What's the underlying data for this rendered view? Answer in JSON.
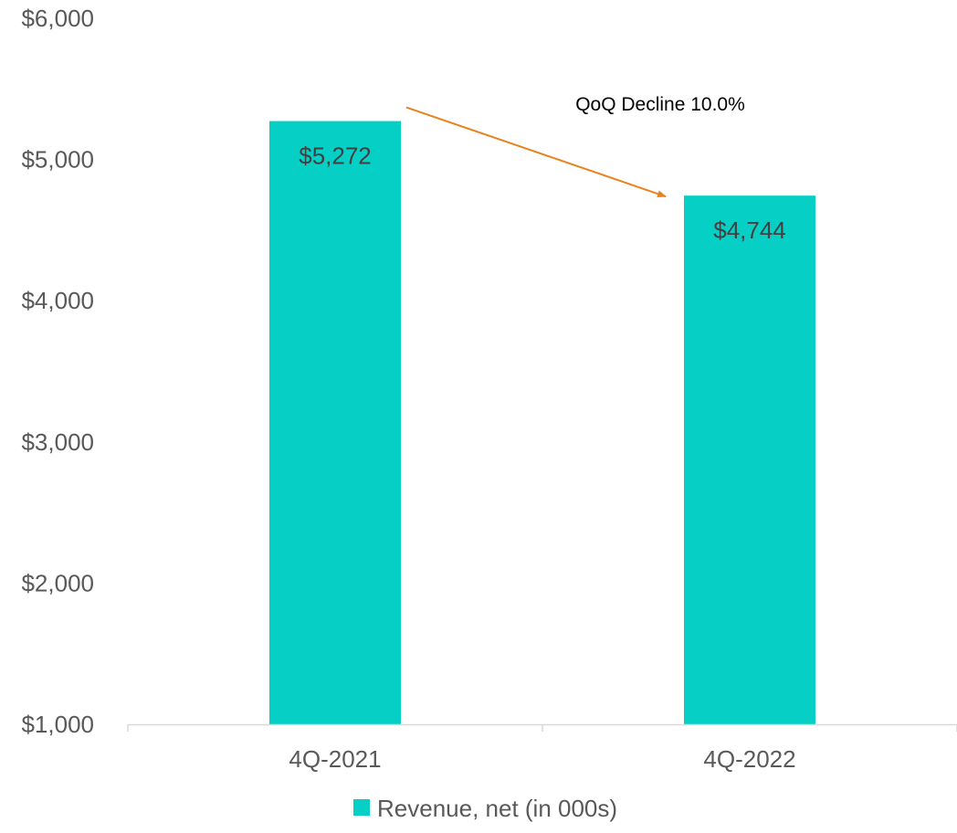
{
  "chart_data": {
    "type": "bar",
    "categories": [
      "4Q-2021",
      "4Q-2022"
    ],
    "series": [
      {
        "name": "Revenue, net (in 000s)",
        "values": [
          5272,
          4744
        ],
        "color": "#06d0c5",
        "data_labels": [
          "$5,272",
          "$4,744"
        ]
      }
    ],
    "ylim": [
      1000,
      6000
    ],
    "yticks": [
      1000,
      2000,
      3000,
      4000,
      5000,
      6000
    ],
    "ytick_labels": [
      "$1,000",
      "$2,000",
      "$3,000",
      "$4,000",
      "$5,000",
      "$6,000"
    ],
    "grid": false,
    "legend": {
      "position": "bottom",
      "label": "Revenue, net (in 000s)"
    },
    "annotations": [
      {
        "text": "QoQ Decline 10.0%",
        "arrow_from": "4Q-2021",
        "arrow_to": "4Q-2022",
        "arrow_color": "#e8821e"
      }
    ]
  }
}
